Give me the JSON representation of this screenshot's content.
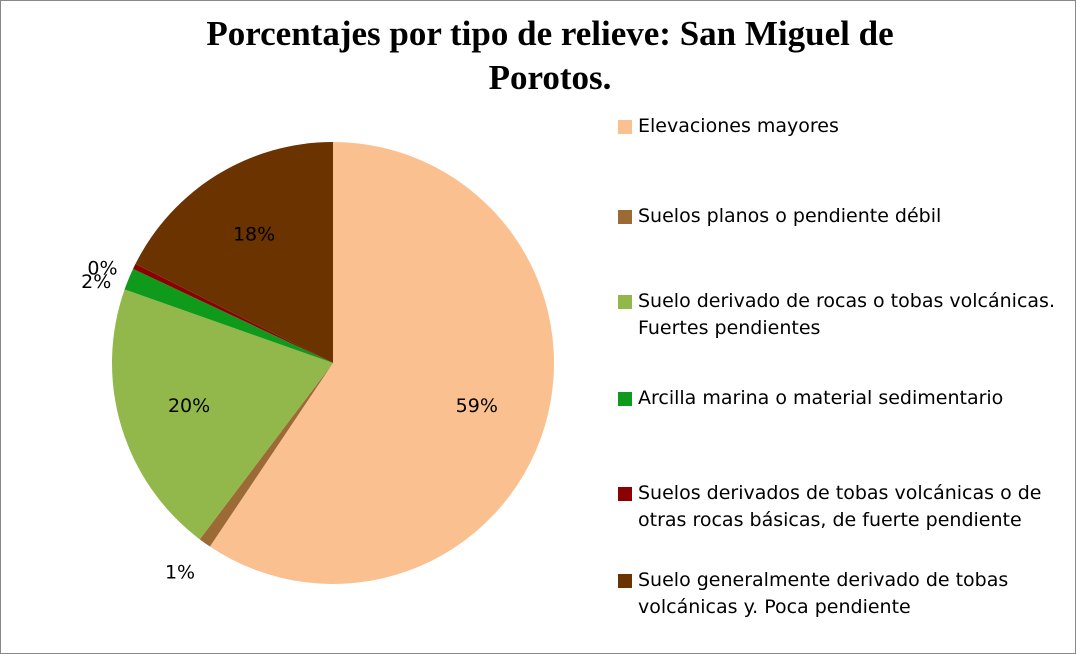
{
  "chart_data": {
    "type": "pie",
    "title": "Porcentajes por tipo de relieve: San Miguel de Porotos.",
    "categories": [
      "Elevaciones mayores",
      "Suelos planos o pendiente débil",
      "Suelo derivado de rocas o tobas volcánicas. Fuertes pendientes",
      "Arcilla marina o material sedimentario",
      "Suelos derivados de tobas volcánicas o de otras rocas básicas, de fuerte pendiente",
      "Suelo generalmente derivado de tobas volcánicas y. Poca pendiente"
    ],
    "values": [
      59.4,
      0.9,
      20.1,
      1.6,
      0.4,
      17.6
    ],
    "value_labels": [
      "59%",
      "1%",
      "20%",
      "2%",
      "0%",
      "18%"
    ],
    "colors": [
      "#fac090",
      "#9c6a34",
      "#92b74b",
      "#109a1c",
      "#8b0000",
      "#6a3300"
    ],
    "legend": "right"
  }
}
